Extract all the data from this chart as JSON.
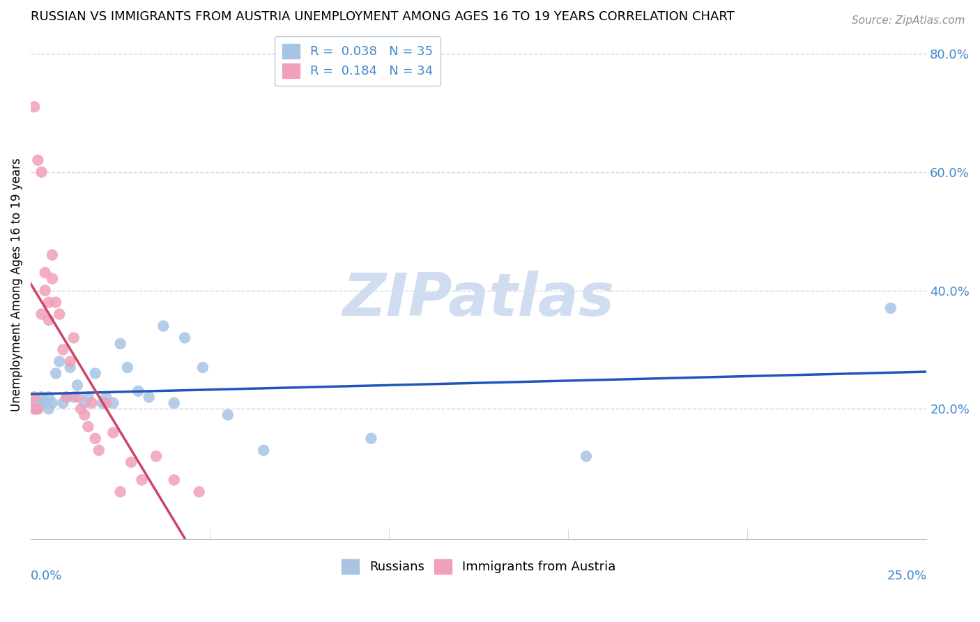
{
  "title": "RUSSIAN VS IMMIGRANTS FROM AUSTRIA UNEMPLOYMENT AMONG AGES 16 TO 19 YEARS CORRELATION CHART",
  "source": "Source: ZipAtlas.com",
  "ylabel": "Unemployment Among Ages 16 to 19 years",
  "xlim": [
    0.0,
    0.25
  ],
  "ylim": [
    -0.02,
    0.84
  ],
  "blue_color": "#a8c4e4",
  "pink_color": "#f0a0b8",
  "blue_line_color": "#2255bb",
  "pink_line_color": "#cc4466",
  "diag_color": "#f0a0b8",
  "grid_color": "#d0d5e0",
  "watermark_color": "#d0ddf0",
  "right_tick_color": "#4488cc",
  "russians_x": [
    0.001,
    0.001,
    0.002,
    0.003,
    0.003,
    0.004,
    0.005,
    0.005,
    0.006,
    0.007,
    0.008,
    0.009,
    0.01,
    0.011,
    0.012,
    0.013,
    0.015,
    0.016,
    0.018,
    0.02,
    0.021,
    0.023,
    0.025,
    0.027,
    0.03,
    0.033,
    0.037,
    0.04,
    0.043,
    0.048,
    0.055,
    0.065,
    0.095,
    0.155,
    0.24
  ],
  "russians_y": [
    0.21,
    0.2,
    0.2,
    0.21,
    0.22,
    0.21,
    0.2,
    0.22,
    0.21,
    0.26,
    0.28,
    0.21,
    0.22,
    0.27,
    0.22,
    0.24,
    0.21,
    0.22,
    0.26,
    0.21,
    0.22,
    0.21,
    0.31,
    0.27,
    0.23,
    0.22,
    0.34,
    0.21,
    0.32,
    0.27,
    0.19,
    0.13,
    0.15,
    0.12,
    0.37
  ],
  "austria_x": [
    0.001,
    0.001,
    0.001,
    0.002,
    0.002,
    0.003,
    0.003,
    0.004,
    0.004,
    0.005,
    0.005,
    0.006,
    0.006,
    0.007,
    0.008,
    0.009,
    0.01,
    0.011,
    0.012,
    0.013,
    0.014,
    0.015,
    0.016,
    0.017,
    0.018,
    0.019,
    0.021,
    0.023,
    0.025,
    0.028,
    0.031,
    0.035,
    0.04,
    0.047
  ],
  "austria_y": [
    0.2,
    0.22,
    0.71,
    0.2,
    0.62,
    0.36,
    0.6,
    0.4,
    0.43,
    0.38,
    0.35,
    0.46,
    0.42,
    0.38,
    0.36,
    0.3,
    0.22,
    0.28,
    0.32,
    0.22,
    0.2,
    0.19,
    0.17,
    0.21,
    0.15,
    0.13,
    0.21,
    0.16,
    0.06,
    0.11,
    0.08,
    0.12,
    0.08,
    0.06
  ]
}
